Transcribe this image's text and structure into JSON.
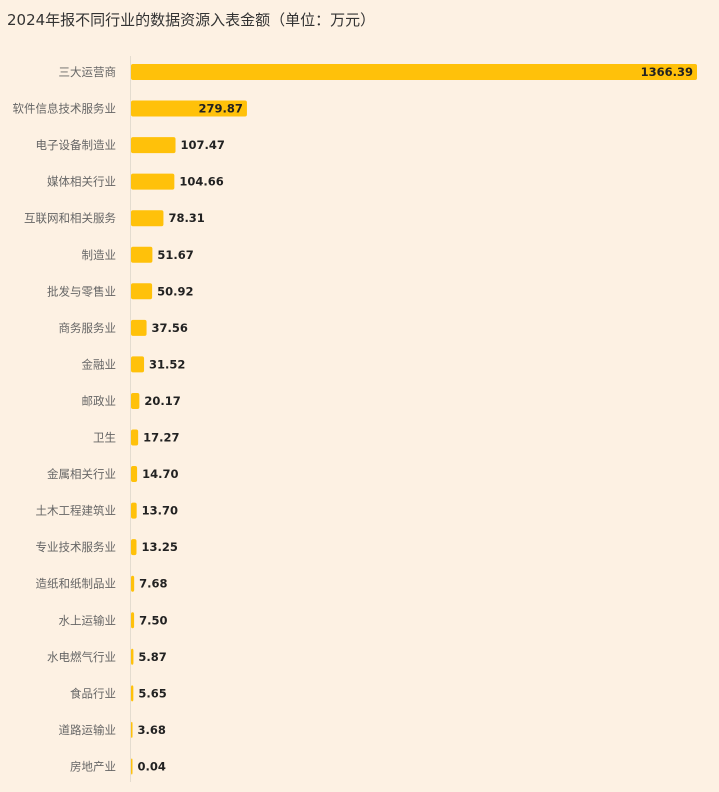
{
  "chart_data": {
    "type": "bar",
    "orientation": "horizontal",
    "title": "2024年报不同行业的数据资源入表金额（单位：万元）",
    "xlabel": "",
    "ylabel": "",
    "grid": false,
    "bar_color": "#ffc10a",
    "categories": [
      "三大运营商",
      "软件信息技术服务业",
      "电子设备制造业",
      "媒体相关行业",
      "互联网和相关服务",
      "制造业",
      "批发与零售业",
      "商务服务业",
      "金融业",
      "邮政业",
      "卫生",
      "金属相关行业",
      "土木工程建筑业",
      "专业技术服务业",
      "造纸和纸制品业",
      "水上运输业",
      "水电燃气行业",
      "食品行业",
      "道路运输业",
      "房地产业"
    ],
    "values": [
      1366.39,
      279.87,
      107.47,
      104.66,
      78.31,
      51.67,
      50.92,
      37.56,
      31.52,
      20.17,
      17.27,
      14.7,
      13.7,
      13.25,
      7.68,
      7.5,
      5.87,
      5.65,
      3.68,
      0.04
    ],
    "value_labels": [
      "1366.39",
      "279.87",
      "107.47",
      "104.66",
      "78.31",
      "51.67",
      "50.92",
      "37.56",
      "31.52",
      "20.17",
      "17.27",
      "14.70",
      "13.70",
      "13.25",
      "7.68",
      "7.50",
      "5.87",
      "5.65",
      "3.68",
      "0.04"
    ],
    "xlim": [
      0,
      1366.39
    ]
  }
}
